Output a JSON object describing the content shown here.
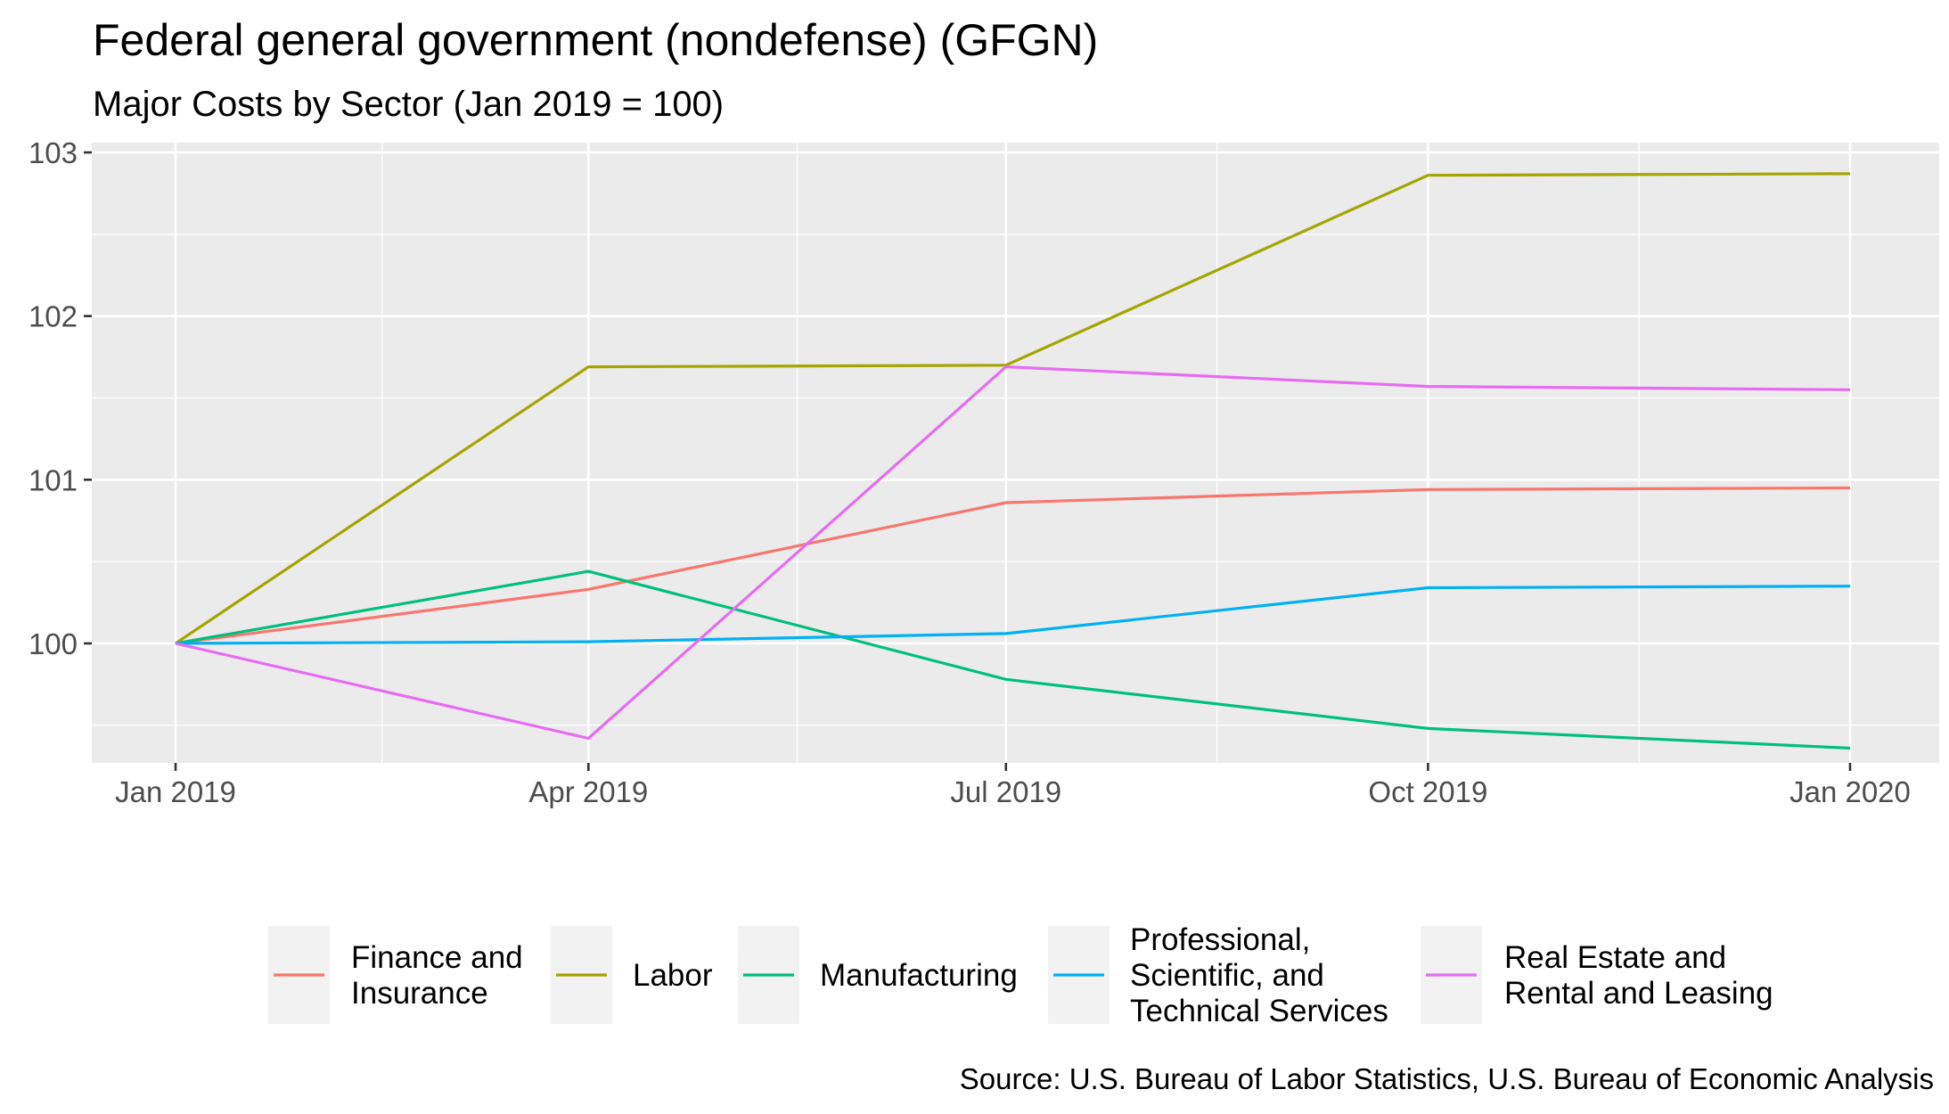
{
  "chart_data": {
    "type": "line",
    "title": "Federal general government (nondefense) (GFGN)",
    "subtitle": "Major Costs by Sector (Jan 2019 = 100)",
    "caption": "Source: U.S. Bureau of Labor Statistics, U.S. Bureau of Economic Analysis",
    "xlabel": "",
    "ylabel": "",
    "x": [
      "2019-01-01",
      "2019-04-01",
      "2019-07-01",
      "2019-10-01",
      "2020-01-01"
    ],
    "x_ticks": [
      "Jan 2019",
      "Apr 2019",
      "Jul 2019",
      "Oct 2019",
      "Jan 2020"
    ],
    "y_ticks": [
      "100",
      "101",
      "102",
      "103"
    ],
    "ylim": [
      99.27,
      103.06
    ],
    "grid": true,
    "legend_position": "bottom",
    "series": [
      {
        "name_lines": [
          "Finance and",
          "Insurance"
        ],
        "color": "#F8766D",
        "values": [
          100.0,
          100.33,
          100.86,
          100.94,
          100.95
        ]
      },
      {
        "name_lines": [
          "Labor"
        ],
        "color": "#A3A500",
        "values": [
          100.0,
          101.69,
          101.7,
          102.86,
          102.87
        ]
      },
      {
        "name_lines": [
          "Manufacturing"
        ],
        "color": "#00BF7D",
        "values": [
          100.0,
          100.44,
          99.78,
          99.48,
          99.36
        ]
      },
      {
        "name_lines": [
          "Professional,",
          "Scientific, and",
          "Technical Services"
        ],
        "color": "#00B0F6",
        "values": [
          100.0,
          100.01,
          100.06,
          100.34,
          100.35
        ]
      },
      {
        "name_lines": [
          "Real Estate and",
          "Rental and Leasing"
        ],
        "color": "#E76BF3",
        "values": [
          100.0,
          99.42,
          101.69,
          101.57,
          101.55
        ]
      }
    ]
  }
}
